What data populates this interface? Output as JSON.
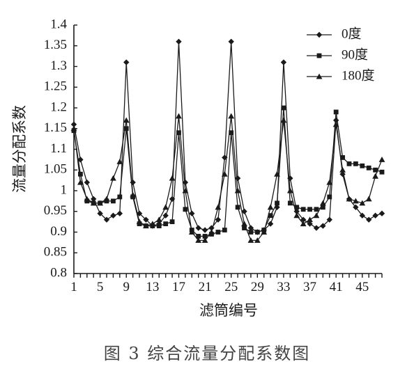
{
  "caption": "图 3    综合流量分配系数图",
  "chart_data": {
    "type": "line",
    "xlabel": "滤筒编号",
    "ylabel": "流量分配系数",
    "xlim": [
      1,
      48
    ],
    "ylim": [
      0.8,
      1.4
    ],
    "xticks": [
      1,
      5,
      9,
      13,
      17,
      21,
      25,
      29,
      33,
      37,
      41,
      45
    ],
    "yticks": [
      0.8,
      0.85,
      0.9,
      0.95,
      1,
      1.05,
      1.1,
      1.15,
      1.2,
      1.25,
      1.3,
      1.35,
      1.4
    ],
    "ytick_labels": [
      "0.8",
      "0.85",
      "0.9",
      "0.95",
      "1",
      "1.05",
      "1.1",
      "1.15",
      "1.2",
      "1.25",
      "1.3",
      "1.35",
      "1.4"
    ],
    "legend_position": "top-right",
    "x": [
      1,
      2,
      3,
      4,
      5,
      6,
      7,
      8,
      9,
      10,
      11,
      12,
      13,
      14,
      15,
      16,
      17,
      18,
      19,
      20,
      21,
      22,
      23,
      24,
      25,
      26,
      27,
      28,
      29,
      30,
      31,
      32,
      33,
      34,
      35,
      36,
      37,
      38,
      39,
      40,
      41,
      42,
      43,
      44,
      45,
      46,
      47,
      48
    ],
    "series": [
      {
        "name": "0度",
        "marker": "diamond",
        "values": [
          1.16,
          1.075,
          1.02,
          0.98,
          0.945,
          0.93,
          0.94,
          0.945,
          1.31,
          1.02,
          0.945,
          0.93,
          0.915,
          0.92,
          0.94,
          0.98,
          1.36,
          1.02,
          0.945,
          0.91,
          0.905,
          0.91,
          0.93,
          1.08,
          1.36,
          1.03,
          0.95,
          0.91,
          0.9,
          0.905,
          0.92,
          0.96,
          1.31,
          1.03,
          0.95,
          0.93,
          0.92,
          0.91,
          0.915,
          0.93,
          1.17,
          1.04,
          0.98,
          0.96,
          0.94,
          0.93,
          0.94,
          0.945
        ]
      },
      {
        "name": "90度",
        "marker": "square",
        "values": [
          1.145,
          1.04,
          0.975,
          0.97,
          0.97,
          0.975,
          0.975,
          0.985,
          1.15,
          0.985,
          0.92,
          0.915,
          0.915,
          0.915,
          0.92,
          0.925,
          1.14,
          0.955,
          0.905,
          0.89,
          0.89,
          0.895,
          0.9,
          0.905,
          1.14,
          0.96,
          0.91,
          0.9,
          0.9,
          0.905,
          0.94,
          0.97,
          1.2,
          0.97,
          0.96,
          0.955,
          0.955,
          0.955,
          0.96,
          0.985,
          1.19,
          1.08,
          1.065,
          1.065,
          1.06,
          1.055,
          1.05,
          1.045
        ]
      },
      {
        "name": "180度",
        "marker": "triangle",
        "values": [
          1.15,
          1.02,
          0.98,
          0.97,
          0.97,
          0.98,
          1.03,
          1.07,
          1.17,
          0.99,
          0.925,
          0.915,
          0.92,
          0.93,
          0.96,
          1.03,
          1.18,
          1.0,
          0.9,
          0.88,
          0.88,
          0.9,
          0.96,
          1.04,
          1.18,
          1.0,
          0.92,
          0.88,
          0.88,
          0.9,
          0.96,
          1.04,
          1.17,
          1.0,
          0.94,
          0.92,
          0.93,
          0.94,
          0.97,
          1.02,
          1.16,
          1.05,
          0.98,
          0.975,
          0.97,
          0.98,
          1.035,
          1.075
        ]
      }
    ]
  }
}
